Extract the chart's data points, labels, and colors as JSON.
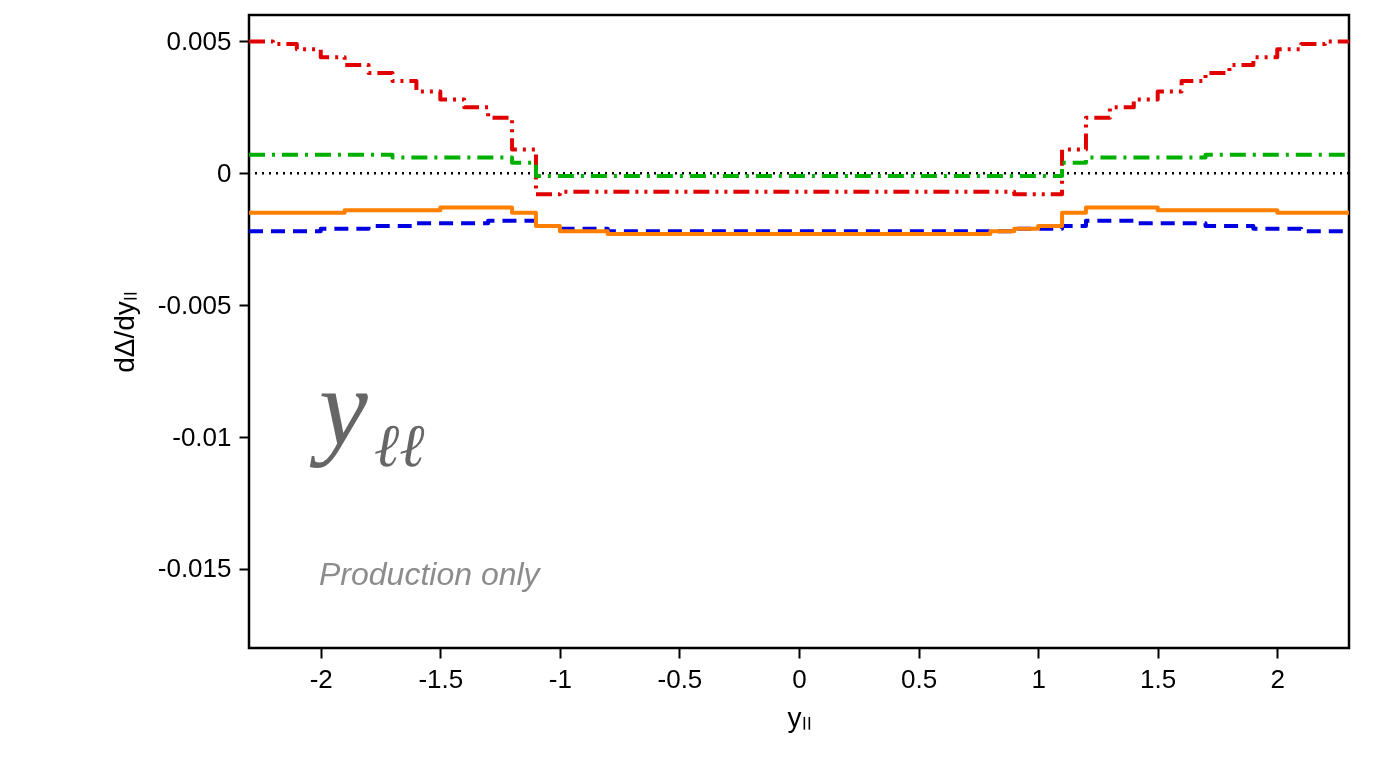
{
  "chart_data": {
    "type": "step",
    "xlabel": "yₗₗ",
    "ylabel": "dΔ/dyₗₗ",
    "annotations": [
      "y$_{ℓℓ}$",
      "Production only"
    ],
    "x": [
      -2.3,
      -2.2,
      -2.1,
      -2.0,
      -1.9,
      -1.8,
      -1.7,
      -1.6,
      -1.5,
      -1.4,
      -1.3,
      -1.2,
      -1.1,
      -1.0,
      -0.9,
      -0.8,
      -0.7,
      -0.6,
      -0.5,
      -0.4,
      -0.3,
      -0.2,
      -0.1,
      0.0,
      0.1,
      0.2,
      0.3,
      0.4,
      0.5,
      0.6,
      0.7,
      0.8,
      0.9,
      1.0,
      1.1,
      1.2,
      1.3,
      1.4,
      1.5,
      1.6,
      1.7,
      1.8,
      1.9,
      2.0,
      2.1,
      2.2,
      2.3
    ],
    "series": [
      {
        "color": "#e00000",
        "line_style": "dashdotdot",
        "values": [
          0.005,
          0.0049,
          0.0047,
          0.0044,
          0.0041,
          0.0038,
          0.0035,
          0.0031,
          0.0028,
          0.0025,
          0.0021,
          0.0009,
          -0.0008,
          -0.0007,
          -0.0007,
          -0.0007,
          -0.0007,
          -0.0007,
          -0.0007,
          -0.0007,
          -0.0007,
          -0.0007,
          -0.0007,
          -0.0007,
          -0.0007,
          -0.0007,
          -0.0007,
          -0.0007,
          -0.0007,
          -0.0007,
          -0.0007,
          -0.0007,
          -0.0008,
          -0.0008,
          0.0009,
          0.0021,
          0.0025,
          0.0028,
          0.0031,
          0.0035,
          0.0038,
          0.0041,
          0.0044,
          0.0047,
          0.0049,
          0.005,
          0.005
        ]
      },
      {
        "color": "#00b000",
        "line_style": "dashdot",
        "values": [
          0.0007,
          0.0007,
          0.0007,
          0.0007,
          0.0007,
          0.0007,
          0.0006,
          0.0006,
          0.0006,
          0.0006,
          0.0006,
          0.0004,
          -0.0001,
          -0.0001,
          -0.0001,
          -0.0001,
          -0.0001,
          -0.0001,
          -0.0001,
          -0.0001,
          -0.0001,
          -0.0001,
          -0.0001,
          -0.0001,
          -0.0001,
          -0.0001,
          -0.0001,
          -0.0001,
          -0.0001,
          -0.0001,
          -0.0001,
          -0.0001,
          -0.0001,
          -0.0001,
          0.0004,
          0.0006,
          0.0006,
          0.0006,
          0.0006,
          0.0006,
          0.0007,
          0.0007,
          0.0007,
          0.0007,
          0.0007,
          0.0007,
          0.0007
        ]
      },
      {
        "color": "#0000e0",
        "line_style": "dashed",
        "values": [
          -0.0022,
          -0.0022,
          -0.0022,
          -0.0021,
          -0.0021,
          -0.002,
          -0.002,
          -0.0019,
          -0.0019,
          -0.0019,
          -0.0018,
          -0.0018,
          -0.002,
          -0.0021,
          -0.0021,
          -0.0022,
          -0.0022,
          -0.0022,
          -0.0022,
          -0.0022,
          -0.0022,
          -0.0022,
          -0.0022,
          -0.0022,
          -0.0022,
          -0.0022,
          -0.0022,
          -0.0022,
          -0.0022,
          -0.0022,
          -0.0022,
          -0.0022,
          -0.0021,
          -0.0021,
          -0.002,
          -0.0018,
          -0.0018,
          -0.0019,
          -0.0019,
          -0.0019,
          -0.002,
          -0.002,
          -0.0021,
          -0.0021,
          -0.0022,
          -0.0022,
          -0.0022
        ]
      },
      {
        "color": "#ff8000",
        "line_style": "solid",
        "values": [
          -0.0015,
          -0.0015,
          -0.0015,
          -0.0015,
          -0.0014,
          -0.0014,
          -0.0014,
          -0.0014,
          -0.0013,
          -0.0013,
          -0.0013,
          -0.0015,
          -0.002,
          -0.0022,
          -0.0022,
          -0.0023,
          -0.0023,
          -0.0023,
          -0.0023,
          -0.0023,
          -0.0023,
          -0.0023,
          -0.0023,
          -0.0023,
          -0.0023,
          -0.0023,
          -0.0023,
          -0.0023,
          -0.0023,
          -0.0023,
          -0.0023,
          -0.0022,
          -0.0021,
          -0.002,
          -0.0015,
          -0.0013,
          -0.0013,
          -0.0013,
          -0.0014,
          -0.0014,
          -0.0014,
          -0.0014,
          -0.0014,
          -0.0015,
          -0.0015,
          -0.0015,
          -0.0015
        ]
      }
    ],
    "ref_lines": [
      {
        "axis": "y",
        "value": 0,
        "color": "#000000",
        "line_style": "dotted"
      }
    ],
    "xlim": [
      -2.3,
      2.3
    ],
    "ylim": [
      -0.018,
      0.006
    ],
    "xticks": [
      -2,
      -1.5,
      -1,
      -0.5,
      0,
      0.5,
      1,
      1.5,
      2
    ],
    "yticks": [
      0.005,
      0,
      -0.005,
      -0.01,
      -0.015
    ],
    "grid": false
  }
}
